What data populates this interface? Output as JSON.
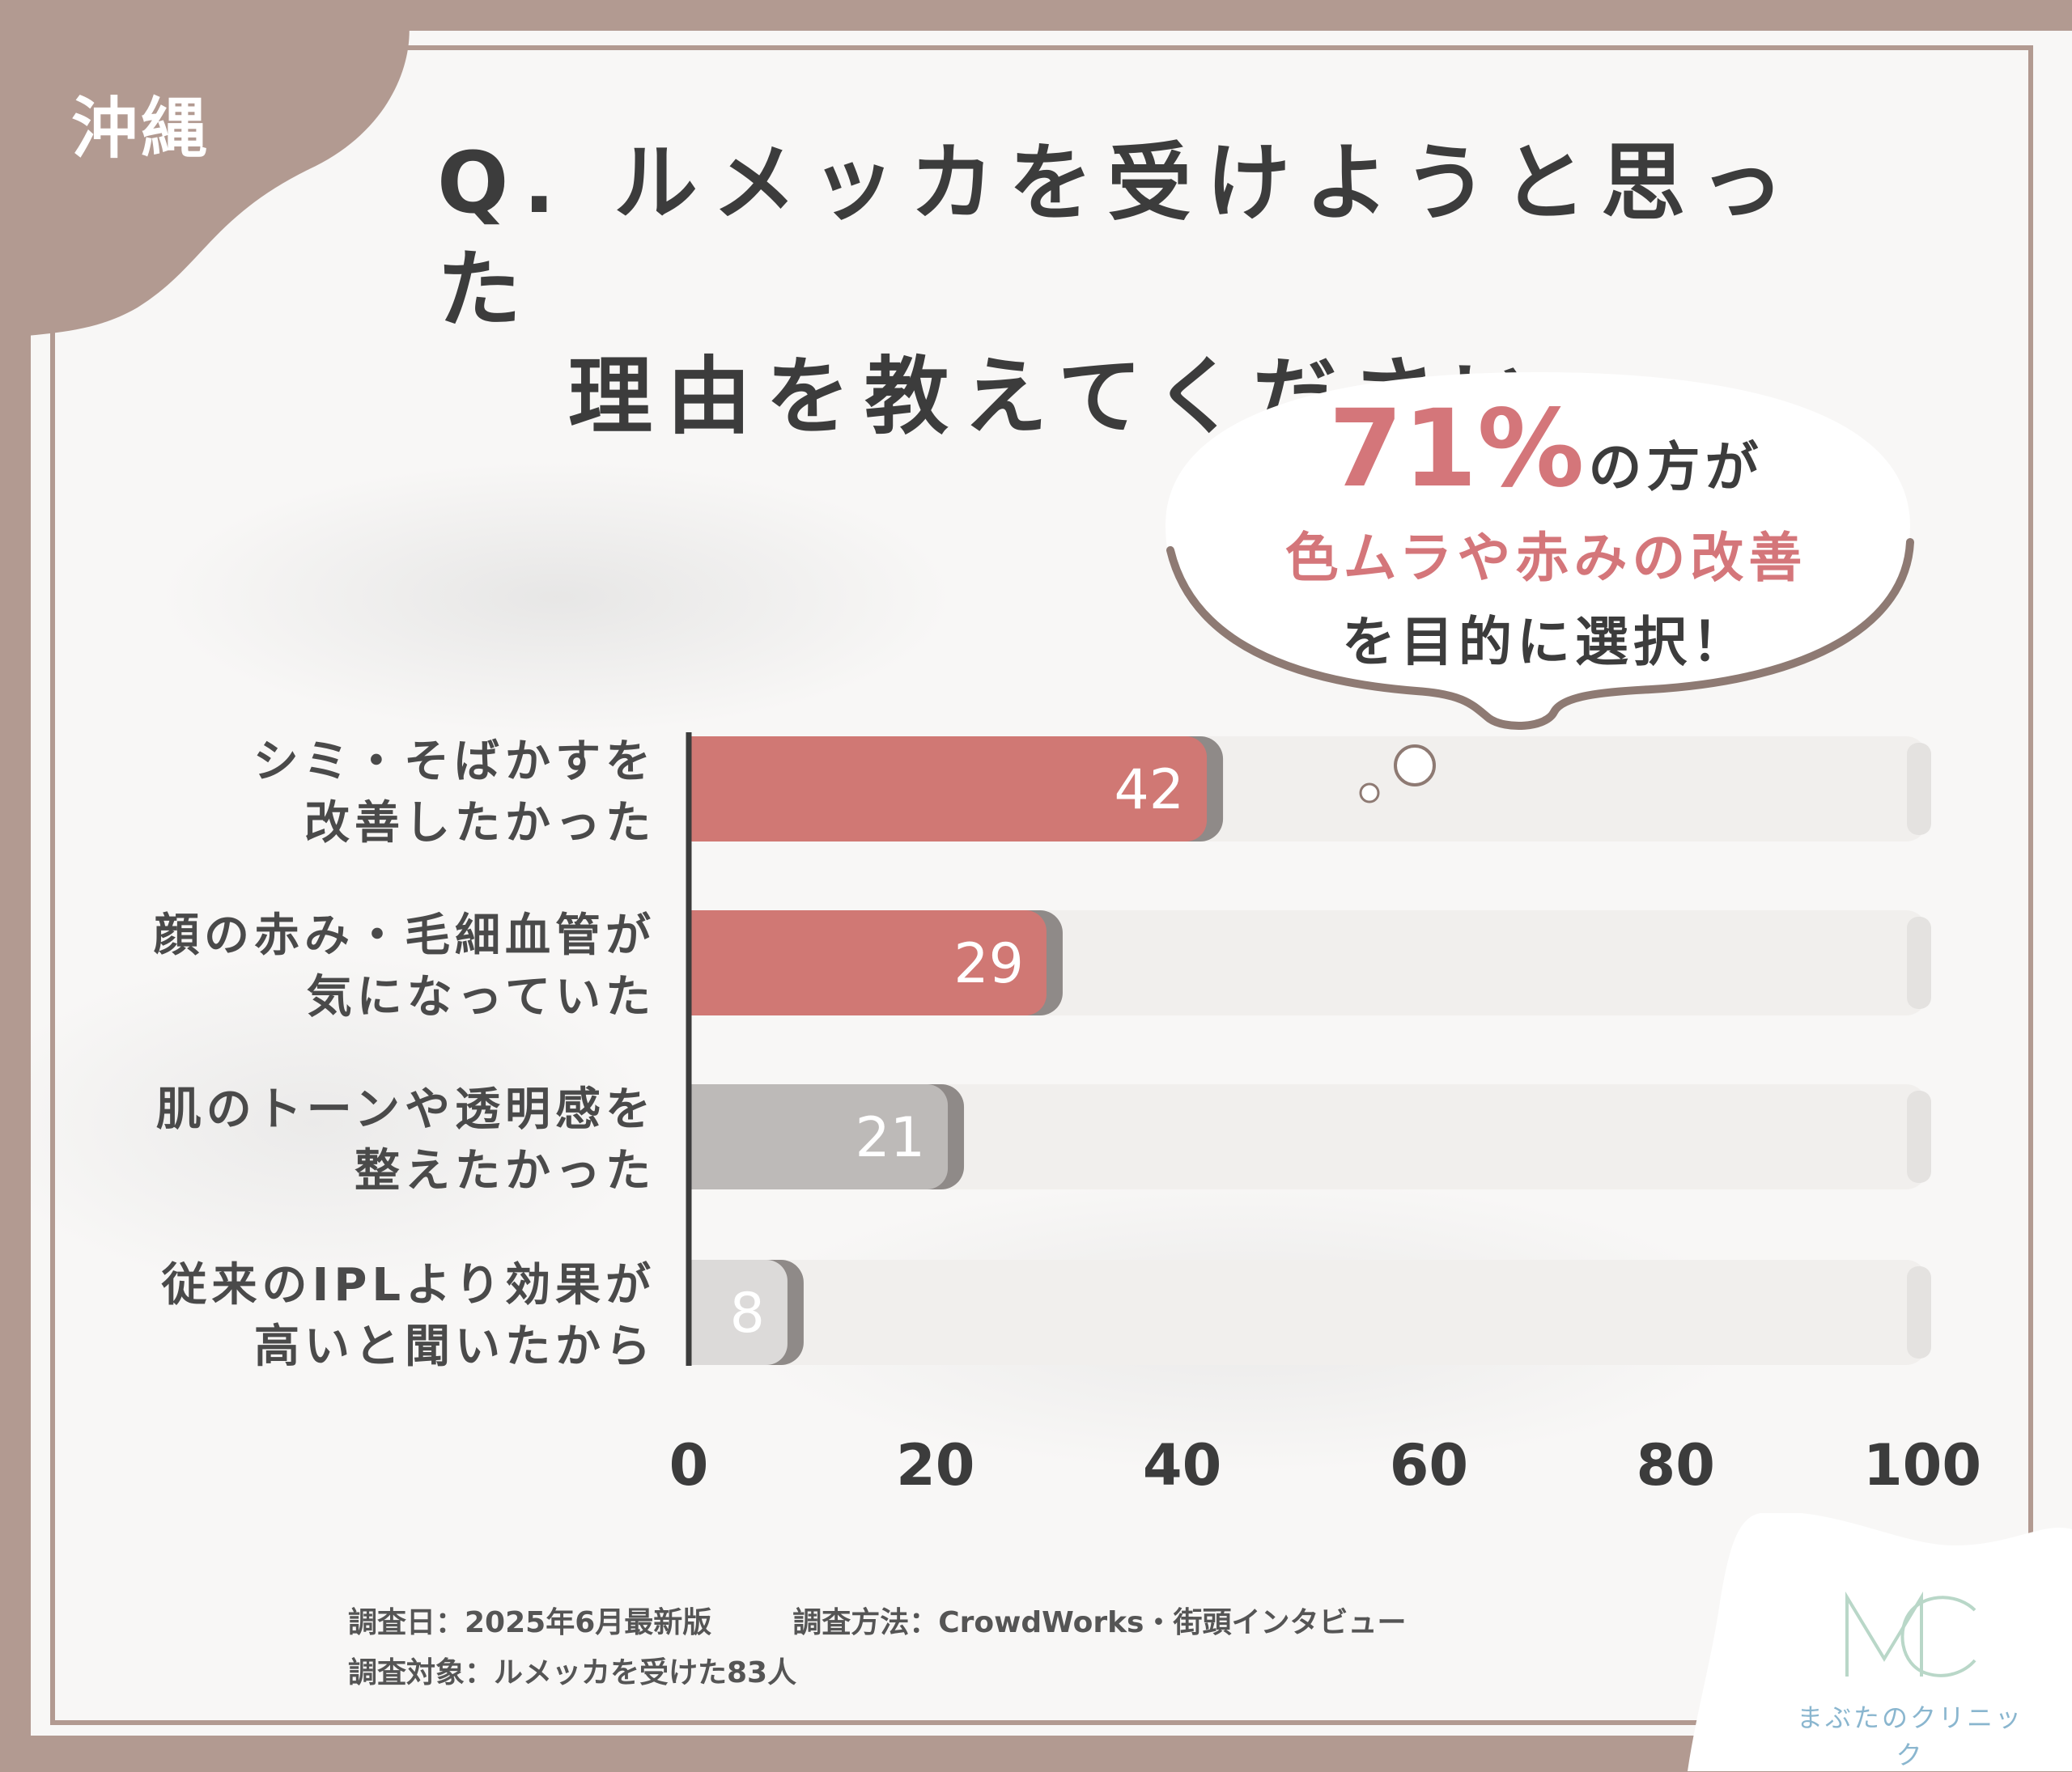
{
  "region": "沖縄",
  "title": {
    "line1": "Q. ルメッカを受けようと思った",
    "line2": "理由を教えてください"
  },
  "callout": {
    "percent": "71%",
    "suffix": "の方が",
    "line2": "色ムラや赤みの改善",
    "line3": "を目的に選択！"
  },
  "chart_data": {
    "type": "bar",
    "orientation": "horizontal",
    "categories": [
      [
        "シミ・そばかすを",
        "改善したかった"
      ],
      [
        "顔の赤み・毛細血管が",
        "気になっていた"
      ],
      [
        "肌のトーンや透明感を",
        "整えたかった"
      ],
      [
        "従来のIPLより効果が",
        "高いと聞いたから"
      ]
    ],
    "values": [
      42,
      29,
      21,
      8
    ],
    "xlim": [
      0,
      100
    ],
    "xticks": [
      "0",
      "20",
      "40",
      "60",
      "80",
      "100"
    ],
    "highlight_color": "#d07874",
    "bar_colors": [
      "#d07874",
      "#d07874",
      "#bdbab8",
      "#dcdad9"
    ],
    "track_color": "#f1efed"
  },
  "footer": {
    "date": "調査日：2025年6月最新版",
    "method": "調査方法：CrowdWorks・街頭インタビュー",
    "target": "調査対象：ルメッカを受けた83人"
  },
  "logo": {
    "mark": "MC",
    "name": "まぶたのクリニック"
  }
}
